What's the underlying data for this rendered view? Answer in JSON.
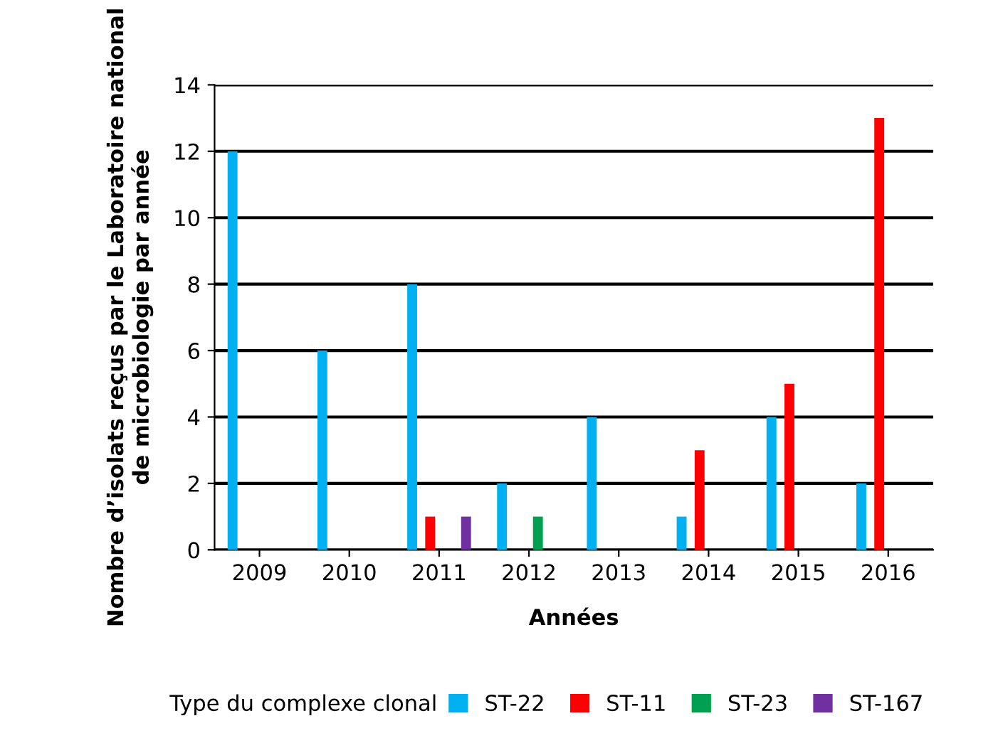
{
  "chart_data": {
    "type": "bar",
    "xlabel": "Années",
    "ylabel": "Nombre d’isolats reçus par le Laboratoire national\nde microbiologie par année",
    "legend_title": "Type du complexe clonal",
    "categories": [
      "2009",
      "2010",
      "2011",
      "2012",
      "2013",
      "2014",
      "2015",
      "2016"
    ],
    "series": [
      {
        "name": "ST-22",
        "color": "#00b0f0",
        "values": [
          12,
          6,
          8,
          2,
          4,
          1,
          4,
          2
        ]
      },
      {
        "name": "ST-11",
        "color": "#ff0000",
        "values": [
          0,
          0,
          1,
          0,
          0,
          3,
          5,
          13
        ]
      },
      {
        "name": "ST-23",
        "color": "#00a050",
        "values": [
          0,
          0,
          0,
          1,
          0,
          0,
          0,
          0
        ]
      },
      {
        "name": "ST-167",
        "color": "#7030a0",
        "values": [
          0,
          0,
          1,
          0,
          0,
          0,
          0,
          0
        ]
      }
    ],
    "ylim": [
      0,
      14
    ],
    "yticks": [
      0,
      2,
      4,
      6,
      8,
      10,
      12,
      14
    ],
    "grid": "y",
    "legend": "bottom"
  }
}
